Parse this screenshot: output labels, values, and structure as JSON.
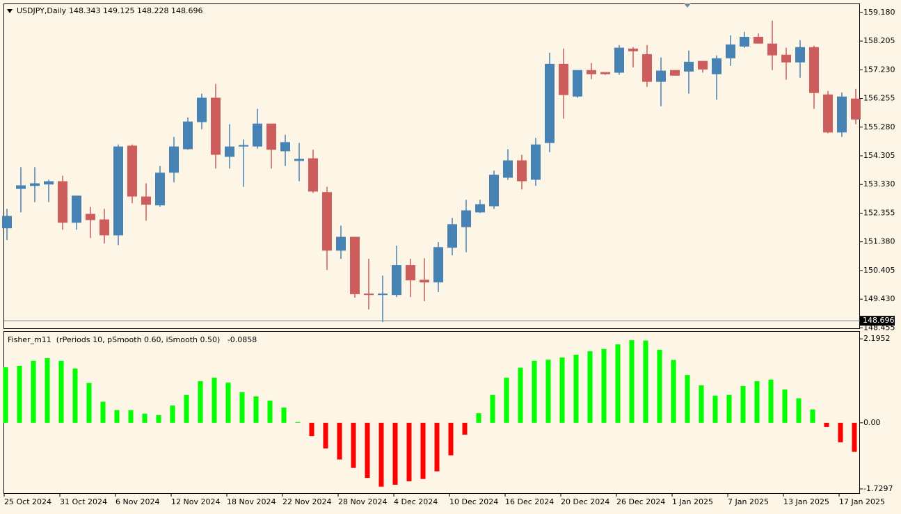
{
  "chart_data": [
    {
      "type": "candlestick",
      "title": "USDJPY,Daily",
      "subtitle": "148.343 149.125 148.228 148.696",
      "categories": [
        "25 Oct 2024",
        null,
        null,
        null,
        "31 Oct 2024",
        null,
        null,
        null,
        "6 Nov 2024",
        null,
        null,
        null,
        "12 Nov 2024",
        null,
        null,
        null,
        "18 Nov 2024",
        null,
        null,
        null,
        "22 Nov 2024",
        null,
        null,
        null,
        "28 Nov 2024",
        null,
        null,
        null,
        "4 Dec 2024",
        null,
        null,
        null,
        "10 Dec 2024",
        null,
        null,
        null,
        "16 Dec 2024",
        null,
        null,
        null,
        "20 Dec 2024",
        null,
        null,
        null,
        "26 Dec 2024",
        null,
        null,
        null,
        "1 Jan 2025",
        null,
        null,
        null,
        "7 Jan 2025",
        null,
        null,
        null,
        "13 Jan 2025",
        null,
        null,
        null,
        "17 Jan 2025",
        null
      ],
      "open": [
        151.84,
        153.18,
        153.28,
        153.33,
        153.44,
        152.03,
        152.33,
        152.14,
        151.6,
        154.65,
        152.92,
        152.62,
        153.73,
        154.53,
        155.45,
        156.28,
        154.27,
        154.62,
        154.62,
        155.4,
        154.46,
        154.13,
        154.22,
        153.07,
        151.08,
        151.55,
        149.62,
        149.57,
        149.57,
        150.59,
        150.09,
        150.0,
        151.18,
        151.88,
        152.38,
        152.59,
        153.56,
        154.15,
        153.49,
        154.74,
        157.43,
        156.32,
        157.22,
        157.15,
        157.13,
        157.95,
        157.76,
        156.82,
        157.22,
        157.17,
        157.53,
        157.08,
        157.62,
        158.02,
        158.35,
        158.12,
        157.74,
        157.48,
        158.0,
        156.39,
        155.1,
        156.25
      ],
      "high": [
        152.5,
        153.92,
        153.92,
        153.49,
        153.63,
        152.95,
        152.57,
        152.5,
        154.69,
        154.69,
        153.37,
        153.96,
        154.95,
        155.61,
        156.42,
        156.75,
        155.38,
        154.86,
        155.9,
        155.4,
        155.02,
        154.74,
        154.51,
        153.25,
        151.93,
        151.55,
        150.8,
        150.23,
        151.25,
        150.8,
        150.82,
        151.37,
        152.19,
        152.81,
        152.81,
        153.8,
        154.53,
        154.34,
        154.91,
        157.81,
        157.95,
        157.22,
        157.46,
        157.15,
        158.07,
        158.0,
        158.07,
        157.65,
        157.22,
        157.88,
        157.53,
        157.72,
        158.4,
        158.52,
        158.47,
        158.9,
        157.98,
        158.24,
        158.05,
        156.51,
        156.46,
        156.58
      ],
      "low": [
        151.44,
        152.38,
        152.73,
        152.73,
        151.79,
        151.79,
        151.51,
        151.32,
        151.27,
        152.69,
        152.1,
        152.57,
        153.4,
        154.51,
        155.21,
        153.87,
        153.87,
        153.25,
        154.55,
        153.87,
        153.96,
        153.44,
        153.04,
        150.42,
        150.8,
        149.48,
        149.08,
        148.65,
        149.5,
        149.5,
        149.36,
        149.67,
        150.92,
        151.03,
        152.36,
        152.5,
        153.49,
        153.16,
        153.28,
        154.43,
        155.57,
        156.28,
        156.91,
        157.06,
        157.06,
        157.31,
        156.65,
        155.99,
        157.03,
        156.42,
        157.13,
        156.21,
        157.36,
        157.98,
        158.12,
        157.22,
        156.89,
        156.96,
        155.9,
        155.07,
        154.95,
        155.38
      ],
      "close": [
        152.26,
        153.3,
        153.37,
        153.44,
        152.03,
        152.95,
        152.12,
        151.6,
        154.62,
        152.92,
        152.64,
        153.73,
        154.62,
        155.47,
        156.28,
        154.34,
        154.62,
        154.67,
        155.4,
        154.51,
        154.77,
        154.2,
        153.09,
        151.08,
        151.55,
        149.6,
        149.57,
        149.62,
        150.59,
        150.07,
        150.0,
        151.2,
        151.98,
        152.45,
        152.66,
        153.66,
        154.15,
        153.44,
        154.69,
        157.43,
        156.37,
        157.22,
        157.08,
        157.08,
        157.98,
        157.86,
        156.82,
        157.2,
        157.03,
        157.5,
        157.24,
        157.62,
        158.09,
        158.35,
        158.12,
        157.72,
        157.48,
        158.0,
        156.44,
        155.1,
        156.32,
        155.54
      ],
      "up_color": "#4682b4",
      "down_color": "#cd5c5c",
      "last_price": 148.696,
      "ylim": [
        148.44,
        159.46
      ],
      "yticks": [
        {
          "value": 159.18,
          "label": "159.180"
        },
        {
          "value": 158.205,
          "label": "158.205"
        },
        {
          "value": 157.23,
          "label": "157.230"
        },
        {
          "value": 156.255,
          "label": "156.255"
        },
        {
          "value": 155.28,
          "label": "155.280"
        },
        {
          "value": 154.305,
          "label": "154.305"
        },
        {
          "value": 153.33,
          "label": "153.330"
        },
        {
          "value": 152.355,
          "label": "152.355"
        },
        {
          "value": 151.38,
          "label": "151.380"
        },
        {
          "value": 150.405,
          "label": "150.405"
        },
        {
          "value": 149.43,
          "label": "149.430"
        },
        {
          "value": 148.455,
          "label": "148.455"
        }
      ]
    },
    {
      "type": "bar",
      "title": "Fisher_m11  (rPeriods 10, pSmooth 0.60, iSmooth 0.50)   -0.0858",
      "values": [
        1.45,
        1.49,
        1.62,
        1.69,
        1.62,
        1.42,
        1.04,
        0.55,
        0.33,
        0.33,
        0.24,
        0.2,
        0.45,
        0.73,
        1.09,
        1.18,
        1.05,
        0.8,
        0.69,
        0.58,
        0.4,
        0.02,
        -0.35,
        -0.67,
        -0.96,
        -1.18,
        -1.44,
        -1.67,
        -1.62,
        -1.53,
        -1.47,
        -1.27,
        -0.85,
        -0.31,
        0.25,
        0.73,
        1.18,
        1.44,
        1.62,
        1.65,
        1.71,
        1.78,
        1.87,
        1.93,
        2.05,
        2.16,
        2.15,
        1.91,
        1.64,
        1.25,
        0.98,
        0.71,
        0.73,
        0.96,
        1.09,
        1.13,
        0.87,
        0.64,
        0.35,
        -0.11,
        -0.51,
        -0.76
      ],
      "up_color": "#00ff00",
      "down_color": "#ff0000",
      "ylim": [
        -1.84,
        2.38
      ],
      "yticks": [
        2.1952,
        {
          "value": 0,
          "label": "0.00"
        },
        -1.7297
      ]
    }
  ]
}
